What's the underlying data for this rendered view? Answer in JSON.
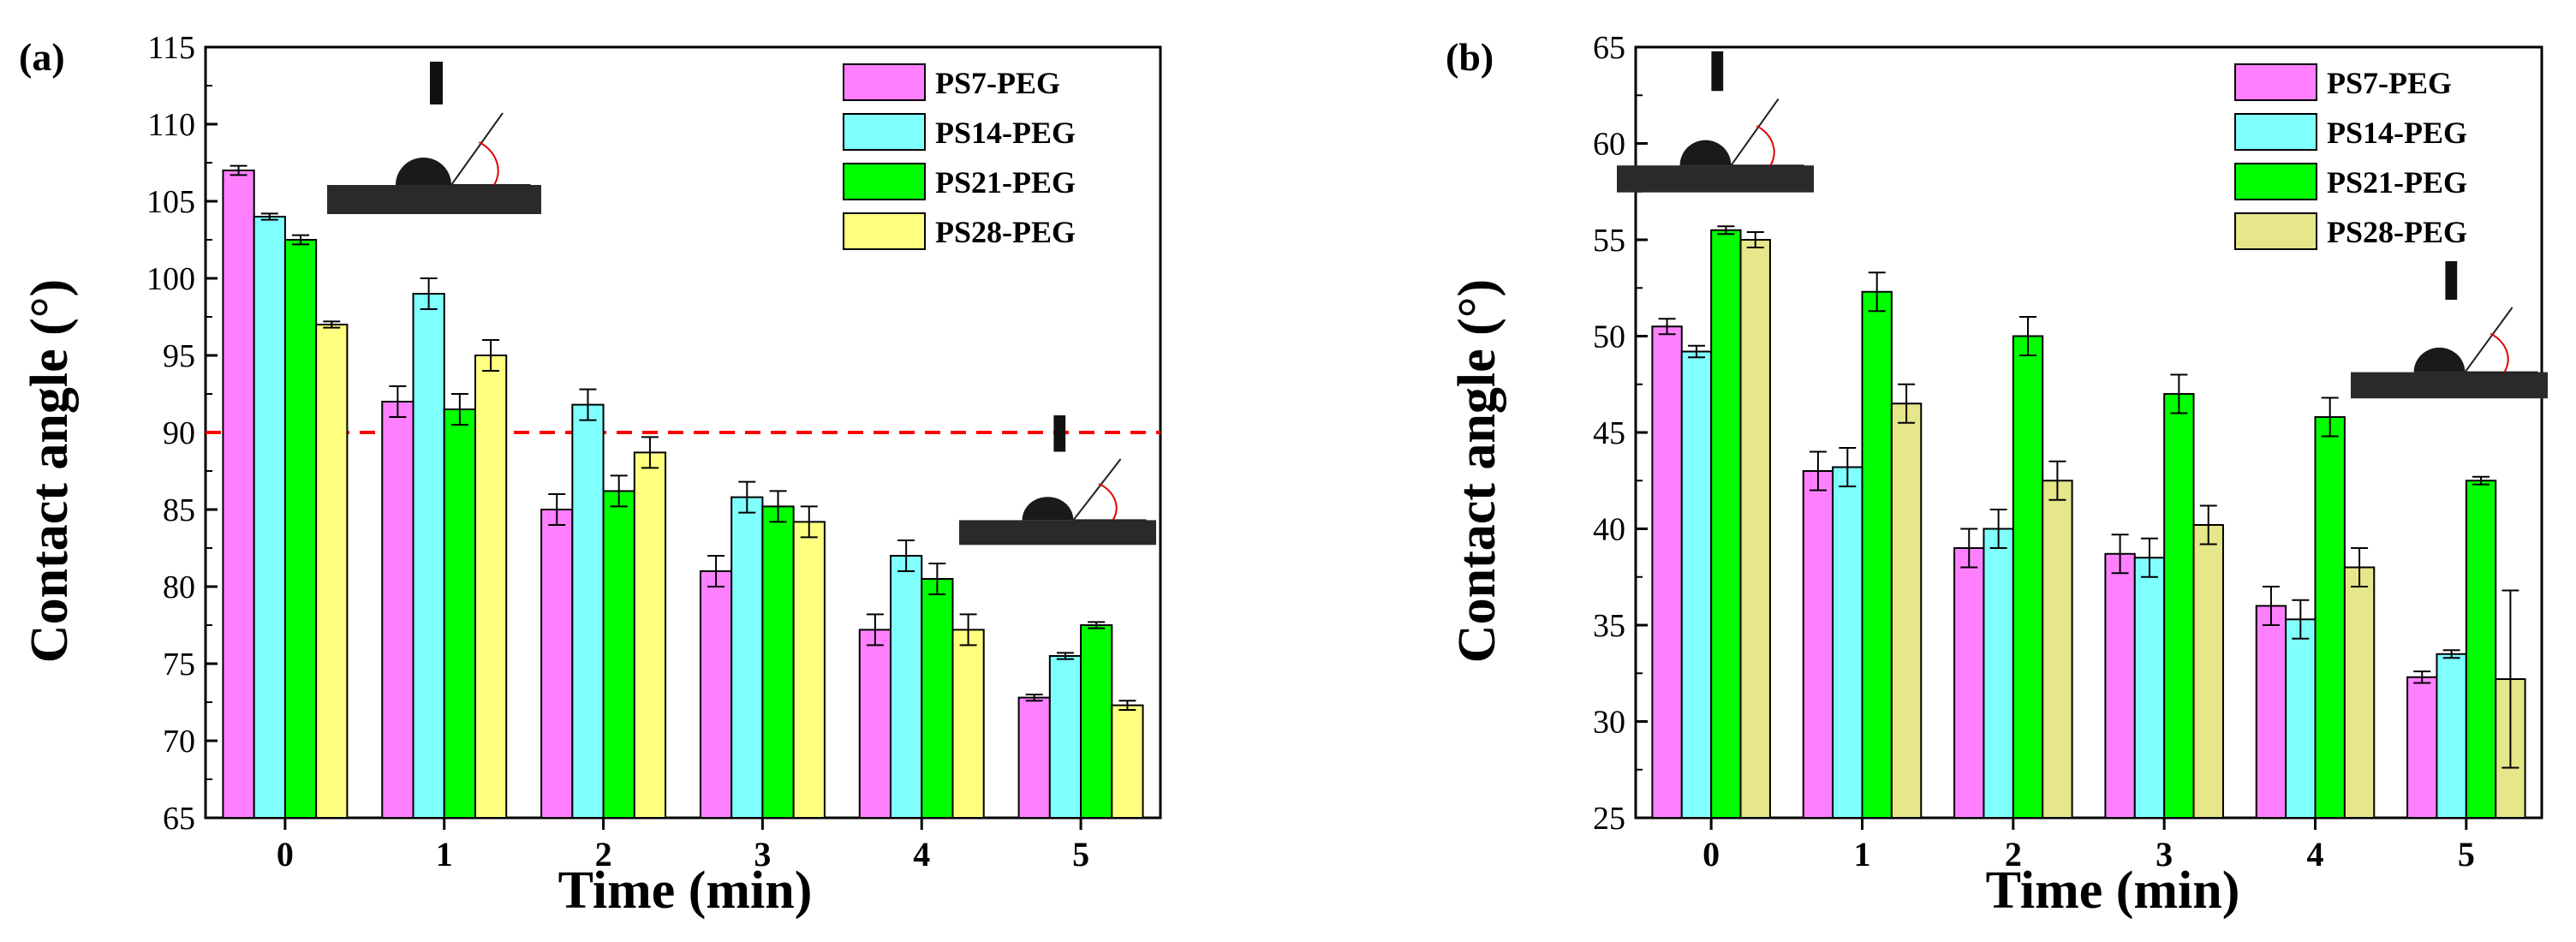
{
  "chart_data": [
    {
      "panel_label": "(a)",
      "type": "bar",
      "ylabel": "Contact angle (°)",
      "xlabel": "Time (min)",
      "categories": [
        "0",
        "1",
        "2",
        "3",
        "4",
        "5"
      ],
      "ylim": [
        65,
        115
      ],
      "yticks": [
        65,
        70,
        75,
        80,
        85,
        90,
        95,
        100,
        105,
        110,
        115
      ],
      "legend_position": "top-right",
      "reference_line": {
        "y": 90,
        "style": "dashed",
        "color": "#ff0000"
      },
      "series": [
        {
          "name": "PS7-PEG",
          "color": "#ff80ff",
          "values": [
            107.0,
            92.0,
            85.0,
            81.0,
            77.2,
            72.8
          ],
          "errors": [
            0.3,
            1.0,
            1.0,
            1.0,
            1.0,
            0.2
          ]
        },
        {
          "name": "PS14-PEG",
          "color": "#80ffff",
          "values": [
            104.0,
            99.0,
            91.8,
            85.8,
            82.0,
            75.5
          ],
          "errors": [
            0.2,
            1.0,
            1.0,
            1.0,
            1.0,
            0.2
          ]
        },
        {
          "name": "PS21-PEG",
          "color": "#00ff00",
          "values": [
            102.5,
            91.5,
            86.2,
            85.2,
            80.5,
            77.5
          ],
          "errors": [
            0.3,
            1.0,
            1.0,
            1.0,
            1.0,
            0.2
          ]
        },
        {
          "name": "PS28-PEG",
          "color": "#ffff80",
          "values": [
            97.0,
            95.0,
            88.7,
            84.2,
            77.2,
            72.3
          ],
          "errors": [
            0.2,
            1.0,
            1.0,
            1.0,
            1.0,
            0.3
          ]
        }
      ],
      "insets": [
        {
          "description": "water droplet photo at time 0"
        },
        {
          "description": "water droplet photo at time 5"
        }
      ]
    },
    {
      "panel_label": "(b)",
      "type": "bar",
      "ylabel": "Contact angle (°)",
      "xlabel": "Time (min)",
      "categories": [
        "0",
        "1",
        "2",
        "3",
        "4",
        "5"
      ],
      "ylim": [
        25,
        65
      ],
      "yticks": [
        25,
        30,
        35,
        40,
        45,
        50,
        55,
        60,
        65
      ],
      "legend_position": "top-right",
      "series": [
        {
          "name": "PS7-PEG",
          "color": "#ff80ff",
          "values": [
            50.5,
            43.0,
            39.0,
            38.7,
            36.0,
            32.3
          ],
          "errors": [
            0.4,
            1.0,
            1.0,
            1.0,
            1.0,
            0.3
          ]
        },
        {
          "name": "PS14-PEG",
          "color": "#80ffff",
          "values": [
            49.2,
            43.2,
            40.0,
            38.5,
            35.3,
            33.5
          ],
          "errors": [
            0.3,
            1.0,
            1.0,
            1.0,
            1.0,
            0.2
          ]
        },
        {
          "name": "PS21-PEG",
          "color": "#00ff00",
          "values": [
            55.5,
            52.3,
            50.0,
            47.0,
            45.8,
            42.5
          ],
          "errors": [
            0.2,
            1.0,
            1.0,
            1.0,
            1.0,
            0.2
          ]
        },
        {
          "name": "PS28-PEG",
          "color": "#e6e68a",
          "values": [
            55.0,
            46.5,
            42.5,
            40.2,
            38.0,
            32.2
          ],
          "errors": [
            0.4,
            1.0,
            1.0,
            1.0,
            1.0,
            4.6
          ]
        }
      ],
      "insets": [
        {
          "description": "water droplet photo at time 0"
        },
        {
          "description": "water droplet photo at time 5"
        }
      ]
    }
  ]
}
